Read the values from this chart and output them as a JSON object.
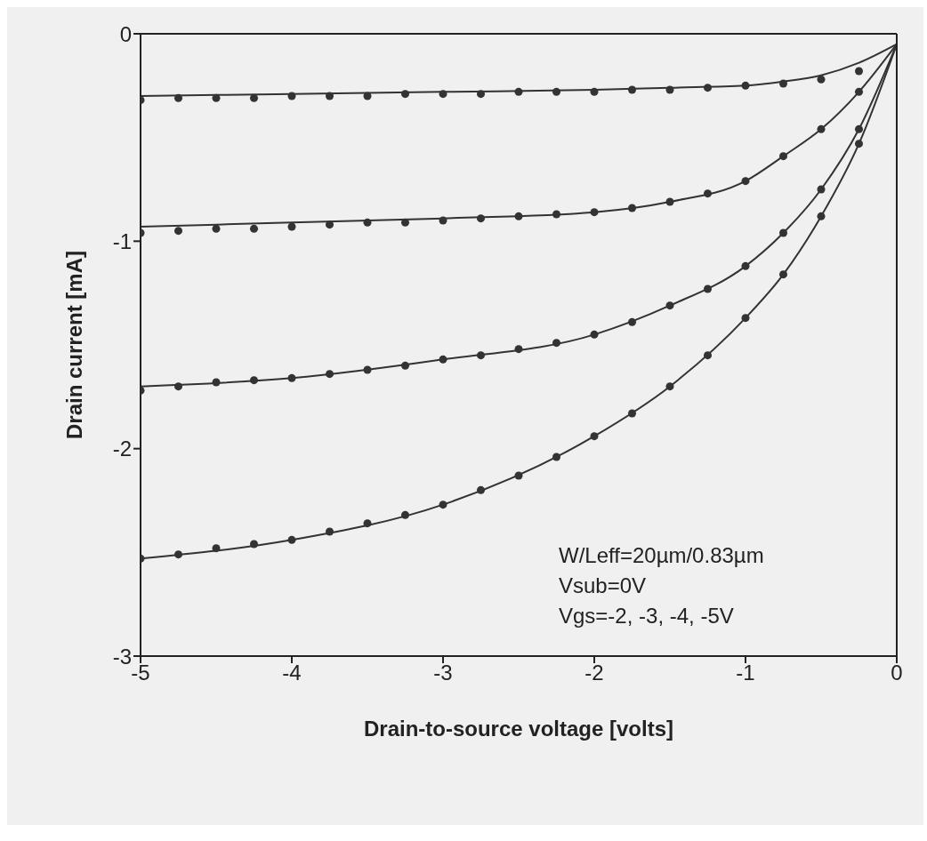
{
  "chart_data": {
    "type": "scatter",
    "xlabel": "Drain-to-source voltage [volts]",
    "ylabel": "Drain current [mA]",
    "xlim": [
      -5,
      0
    ],
    "xticks": [
      -5,
      -4,
      -3,
      -2,
      -1,
      0
    ],
    "ylim": [
      -3,
      0
    ],
    "yticks": [
      -3,
      -2,
      -1,
      0
    ],
    "grid": false,
    "legend": false,
    "annotations": [
      "W/Leff=20µm/0.83µm",
      "Vsub=0V",
      "Vgs=-2, -3, -4, -5V"
    ],
    "series": [
      {
        "marker": "circle",
        "color": "#333333",
        "x": [
          -5,
          -4.75,
          -4.5,
          -4.25,
          -4,
          -3.75,
          -3.5,
          -3.25,
          -3,
          -2.75,
          -2.5,
          -2.25,
          -2,
          -1.75,
          -1.5,
          -1.25,
          -1,
          -0.75,
          -0.5,
          -0.25
        ],
        "values": [
          -0.32,
          -0.31,
          -0.31,
          -0.31,
          -0.3,
          -0.3,
          -0.3,
          -0.29,
          -0.29,
          -0.29,
          -0.28,
          -0.28,
          -0.28,
          -0.27,
          -0.27,
          -0.26,
          -0.25,
          -0.24,
          -0.22,
          -0.18
        ]
      },
      {
        "marker": "circle",
        "color": "#333333",
        "x": [
          -5,
          -4.75,
          -4.5,
          -4.25,
          -4,
          -3.75,
          -3.5,
          -3.25,
          -3,
          -2.75,
          -2.5,
          -2.25,
          -2,
          -1.75,
          -1.5,
          -1.25,
          -1,
          -0.75,
          -0.5,
          -0.25
        ],
        "values": [
          -0.96,
          -0.95,
          -0.94,
          -0.94,
          -0.93,
          -0.92,
          -0.91,
          -0.91,
          -0.9,
          -0.89,
          -0.88,
          -0.87,
          -0.86,
          -0.84,
          -0.81,
          -0.77,
          -0.71,
          -0.59,
          -0.46,
          -0.28
        ]
      },
      {
        "marker": "circle",
        "color": "#333333",
        "x": [
          -5,
          -4.75,
          -4.5,
          -4.25,
          -4,
          -3.75,
          -3.5,
          -3.25,
          -3,
          -2.75,
          -2.5,
          -2.25,
          -2,
          -1.75,
          -1.5,
          -1.25,
          -1,
          -0.75,
          -0.5,
          -0.25
        ],
        "values": [
          -1.72,
          -1.7,
          -1.68,
          -1.67,
          -1.66,
          -1.64,
          -1.62,
          -1.6,
          -1.57,
          -1.55,
          -1.52,
          -1.49,
          -1.45,
          -1.39,
          -1.31,
          -1.23,
          -1.12,
          -0.96,
          -0.75,
          -0.46
        ]
      },
      {
        "marker": "circle",
        "color": "#333333",
        "x": [
          -5,
          -4.75,
          -4.5,
          -4.25,
          -4,
          -3.75,
          -3.5,
          -3.25,
          -3,
          -2.75,
          -2.5,
          -2.25,
          -2,
          -1.75,
          -1.5,
          -1.25,
          -1,
          -0.75,
          -0.5,
          -0.25
        ],
        "values": [
          -2.53,
          -2.51,
          -2.48,
          -2.46,
          -2.44,
          -2.4,
          -2.36,
          -2.32,
          -2.27,
          -2.2,
          -2.13,
          -2.04,
          -1.94,
          -1.83,
          -1.7,
          -1.55,
          -1.37,
          -1.16,
          -0.88,
          -0.53
        ]
      },
      {
        "type": "line",
        "marker": "none",
        "color": "#333333",
        "x": [
          -5,
          -4,
          -3,
          -2,
          -1.5,
          -1,
          -0.75,
          -0.5,
          -0.25,
          0
        ],
        "values": [
          -0.3,
          -0.29,
          -0.28,
          -0.27,
          -0.26,
          -0.25,
          -0.23,
          -0.2,
          -0.14,
          -0.05
        ]
      },
      {
        "type": "line",
        "marker": "none",
        "color": "#333333",
        "x": [
          -5,
          -4,
          -3,
          -2,
          -1.5,
          -1,
          -0.75,
          -0.5,
          -0.25,
          0
        ],
        "values": [
          -0.93,
          -0.91,
          -0.89,
          -0.86,
          -0.81,
          -0.71,
          -0.59,
          -0.46,
          -0.28,
          -0.05
        ]
      },
      {
        "type": "line",
        "marker": "none",
        "color": "#333333",
        "x": [
          -5,
          -4,
          -3,
          -2,
          -1.5,
          -1,
          -0.75,
          -0.5,
          -0.25,
          0
        ],
        "values": [
          -1.7,
          -1.66,
          -1.57,
          -1.45,
          -1.31,
          -1.12,
          -0.96,
          -0.75,
          -0.46,
          -0.05
        ]
      },
      {
        "type": "line",
        "marker": "none",
        "color": "#333333",
        "x": [
          -5,
          -4,
          -3,
          -2,
          -1.5,
          -1,
          -0.75,
          -0.5,
          -0.25,
          0
        ],
        "values": [
          -2.53,
          -2.44,
          -2.27,
          -1.94,
          -1.7,
          -1.37,
          -1.16,
          -0.88,
          -0.53,
          -0.05
        ]
      }
    ]
  }
}
